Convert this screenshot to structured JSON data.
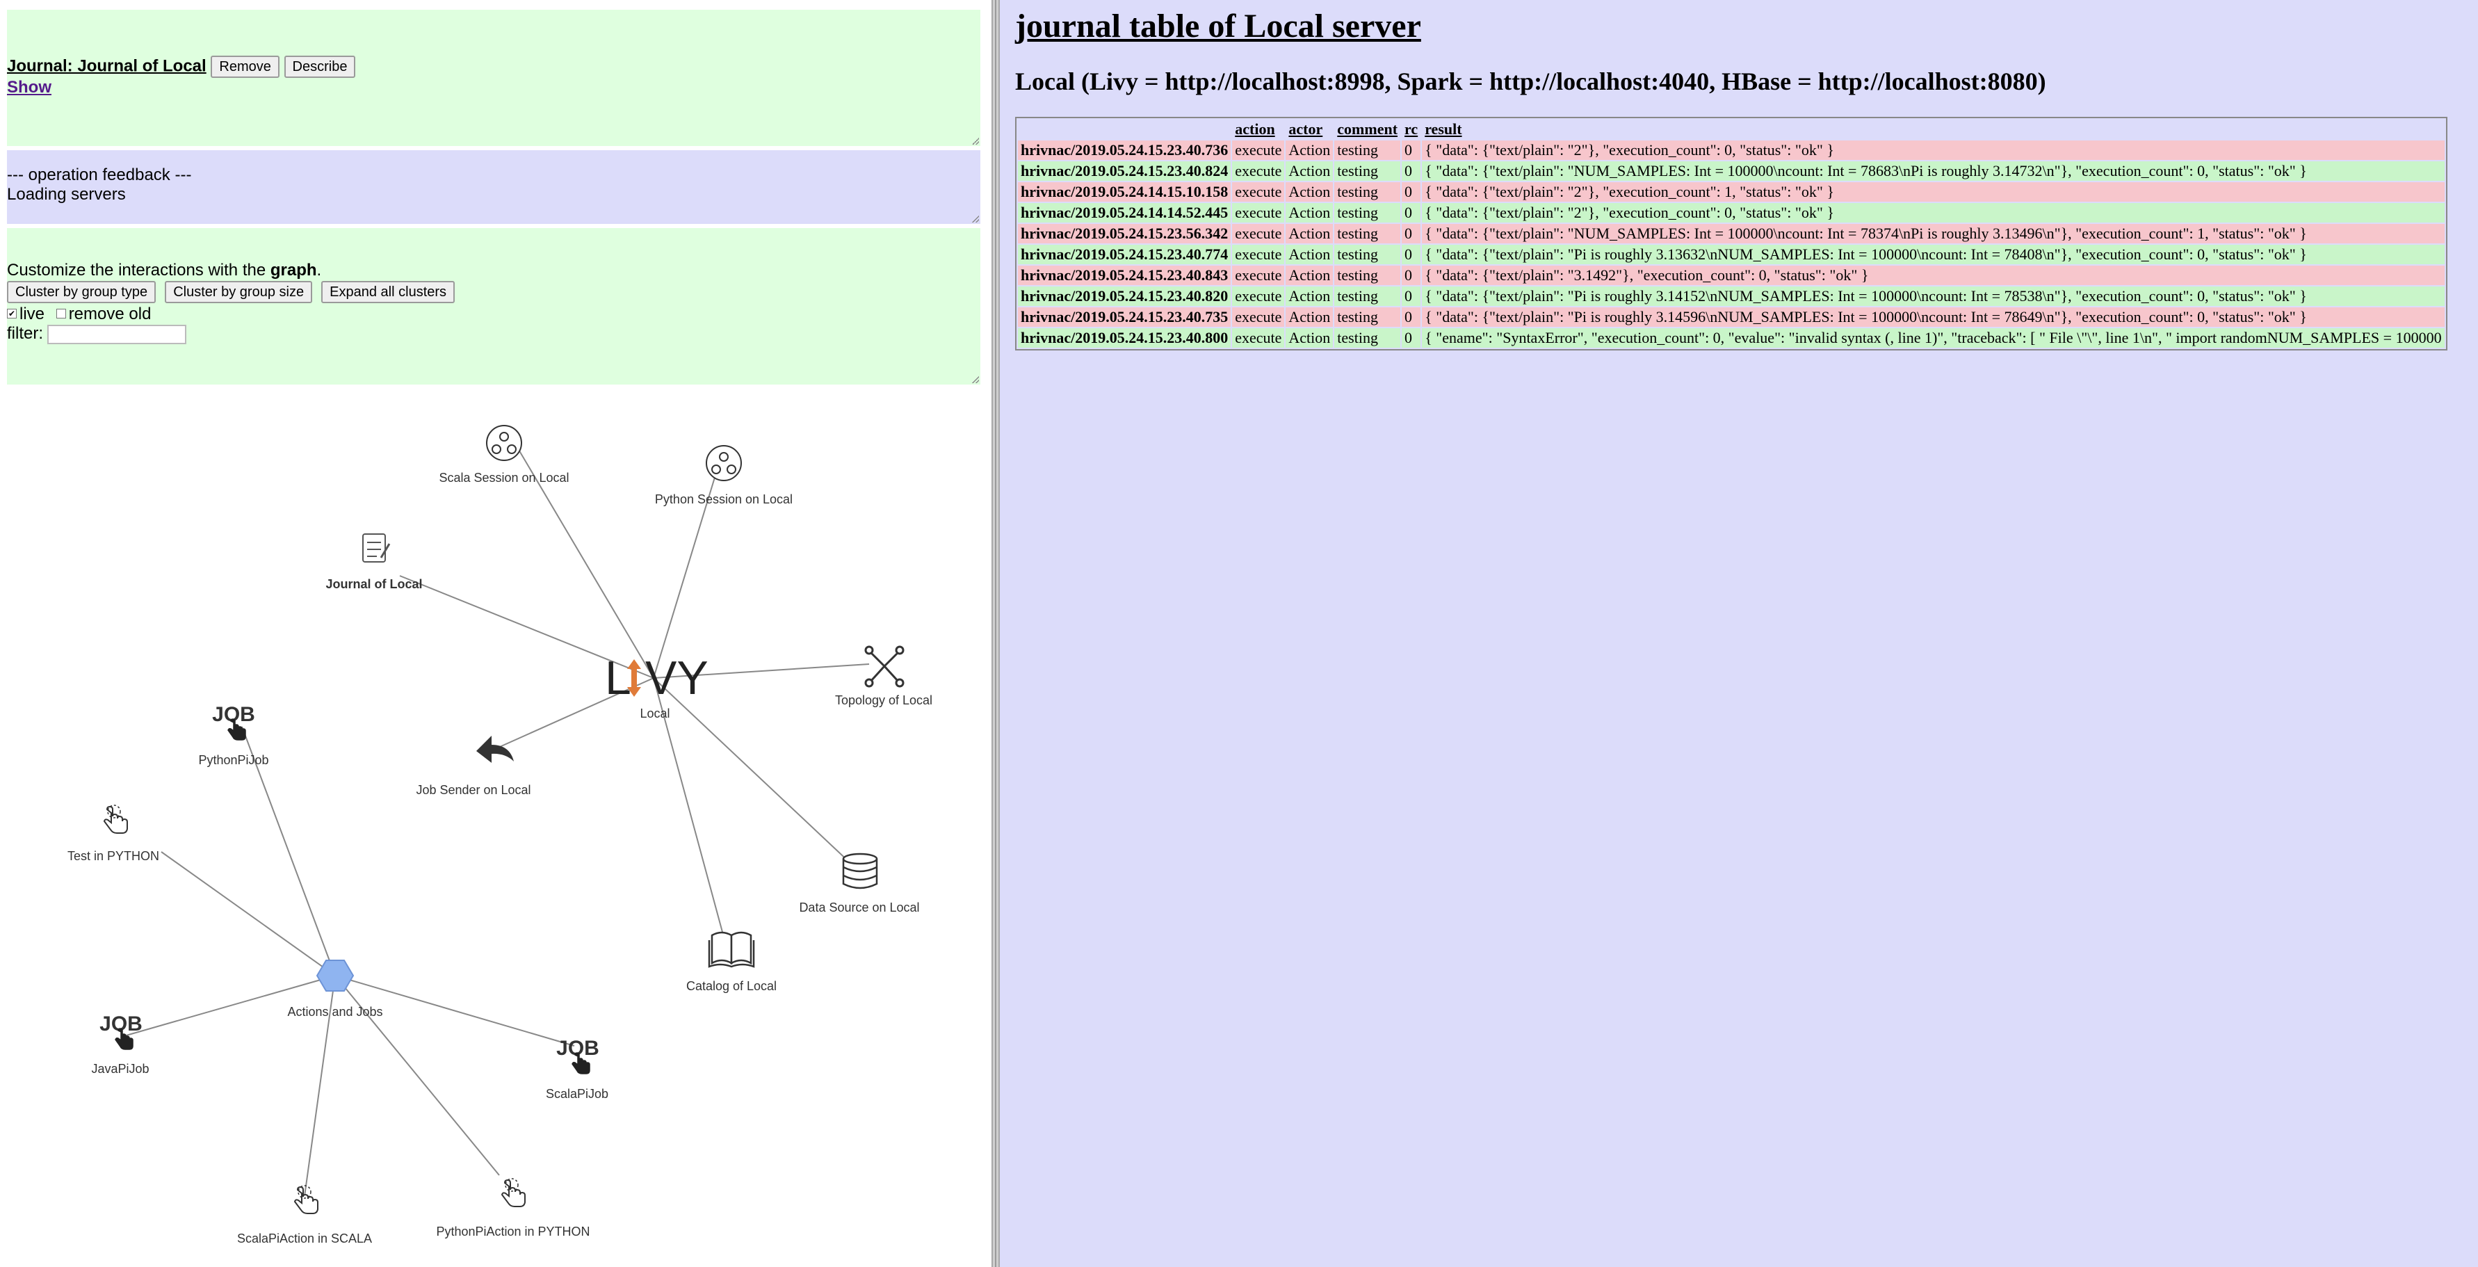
{
  "journal_panel": {
    "title": "Journal: Journal of Local",
    "remove_label": "Remove",
    "describe_label": "Describe",
    "show_label": "Show"
  },
  "feedback_panel": {
    "heading": "--- operation feedback ---",
    "message": "Loading servers"
  },
  "customize_panel": {
    "text_prefix": "Customize the interactions with the ",
    "text_bold": "graph",
    "text_suffix": ".",
    "buttons": [
      "Cluster by group type",
      "Cluster by group size",
      "Expand all clusters"
    ],
    "live_label": "live",
    "live_checked": true,
    "remove_old_label": "remove old",
    "remove_old_checked": false,
    "filter_label": "filter:",
    "filter_value": ""
  },
  "graph": {
    "center": {
      "label": "Local",
      "logo_text": "LIVY"
    },
    "nodes": {
      "scala_session": "Scala Session on Local",
      "python_session": "Python Session on Local",
      "journal": "Journal of Local",
      "topology": "Topology of Local",
      "job_sender": "Job Sender on Local",
      "data_source": "Data Source on Local",
      "catalog": "Catalog of Local",
      "actions_jobs": "Actions and Jobs",
      "pythonpijob": "PythonPiJob",
      "test_python": "Test in PYTHON",
      "javapijob": "JavaPiJob",
      "scalapijob": "ScalaPiJob",
      "scalapiaction": "ScalaPiAction in SCALA",
      "pythonpiaction": "PythonPiAction in PYTHON"
    },
    "job_icon_text": "JOB",
    "colors": {
      "edge": "#888888",
      "hexagon": "#8fb4f0",
      "livy_arrow": "#e07b39"
    }
  },
  "right": {
    "title": "journal table of Local server",
    "server_info": "Local (Livy = http://localhost:8998, Spark = http://localhost:4040, HBase = http://localhost:8080)",
    "columns": [
      "",
      "action",
      "actor",
      "comment",
      "rc",
      "result"
    ],
    "rows": [
      {
        "status": "err",
        "id": "hrivnac/2019.05.24.15.23.40.736",
        "action": "execute",
        "actor": "Action",
        "comment": "testing",
        "rc": "0",
        "result": "{ \"data\": {\"text/plain\": \"2\"}, \"execution_count\": 0, \"status\": \"ok\" }"
      },
      {
        "status": "ok",
        "id": "hrivnac/2019.05.24.15.23.40.824",
        "action": "execute",
        "actor": "Action",
        "comment": "testing",
        "rc": "0",
        "result": "{ \"data\": {\"text/plain\": \"NUM_SAMPLES: Int = 100000\\ncount: Int = 78683\\nPi is roughly 3.14732\\n\"}, \"execution_count\": 0, \"status\": \"ok\" }"
      },
      {
        "status": "err",
        "id": "hrivnac/2019.05.24.14.15.10.158",
        "action": "execute",
        "actor": "Action",
        "comment": "testing",
        "rc": "0",
        "result": "{ \"data\": {\"text/plain\": \"2\"}, \"execution_count\": 1, \"status\": \"ok\" }"
      },
      {
        "status": "ok",
        "id": "hrivnac/2019.05.24.14.14.52.445",
        "action": "execute",
        "actor": "Action",
        "comment": "testing",
        "rc": "0",
        "result": "{ \"data\": {\"text/plain\": \"2\"}, \"execution_count\": 0, \"status\": \"ok\" }"
      },
      {
        "status": "err",
        "id": "hrivnac/2019.05.24.15.23.56.342",
        "action": "execute",
        "actor": "Action",
        "comment": "testing",
        "rc": "0",
        "result": "{ \"data\": {\"text/plain\": \"NUM_SAMPLES: Int = 100000\\ncount: Int = 78374\\nPi is roughly 3.13496\\n\"}, \"execution_count\": 1, \"status\": \"ok\" }"
      },
      {
        "status": "ok",
        "id": "hrivnac/2019.05.24.15.23.40.774",
        "action": "execute",
        "actor": "Action",
        "comment": "testing",
        "rc": "0",
        "result": "{ \"data\": {\"text/plain\": \"Pi is roughly 3.13632\\nNUM_SAMPLES: Int = 100000\\ncount: Int = 78408\\n\"}, \"execution_count\": 0, \"status\": \"ok\" }"
      },
      {
        "status": "err",
        "id": "hrivnac/2019.05.24.15.23.40.843",
        "action": "execute",
        "actor": "Action",
        "comment": "testing",
        "rc": "0",
        "result": "{ \"data\": {\"text/plain\": \"3.1492\"}, \"execution_count\": 0, \"status\": \"ok\" }"
      },
      {
        "status": "ok",
        "id": "hrivnac/2019.05.24.15.23.40.820",
        "action": "execute",
        "actor": "Action",
        "comment": "testing",
        "rc": "0",
        "result": "{ \"data\": {\"text/plain\": \"Pi is roughly 3.14152\\nNUM_SAMPLES: Int = 100000\\ncount: Int = 78538\\n\"}, \"execution_count\": 0, \"status\": \"ok\" }"
      },
      {
        "status": "err",
        "id": "hrivnac/2019.05.24.15.23.40.735",
        "action": "execute",
        "actor": "Action",
        "comment": "testing",
        "rc": "0",
        "result": "{ \"data\": {\"text/plain\": \"Pi is roughly 3.14596\\nNUM_SAMPLES: Int = 100000\\ncount: Int = 78649\\n\"}, \"execution_count\": 0, \"status\": \"ok\" }"
      },
      {
        "status": "ok",
        "id": "hrivnac/2019.05.24.15.23.40.800",
        "action": "execute",
        "actor": "Action",
        "comment": "testing",
        "rc": "0",
        "result": "{ \"ename\": \"SyntaxError\", \"execution_count\": 0, \"evalue\": \"invalid syntax (, line 1)\", \"traceback\": [ \" File \\\"\\\", line 1\\n\", \" import randomNUM_SAMPLES = 100000"
      }
    ]
  }
}
